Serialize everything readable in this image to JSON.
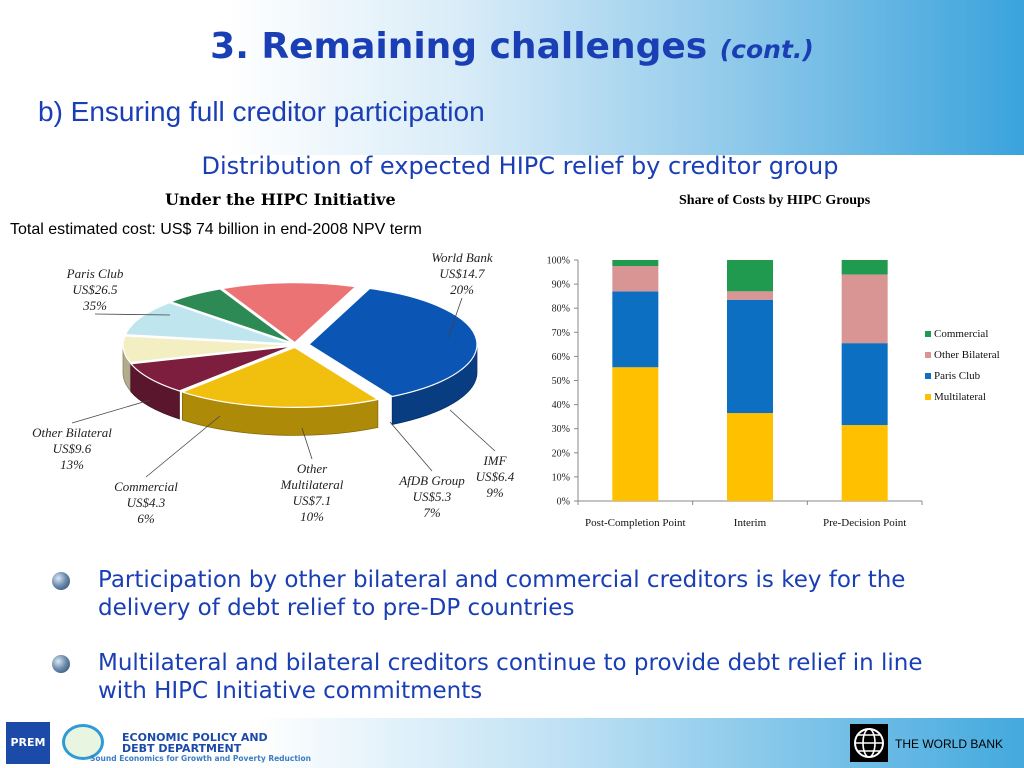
{
  "slide": {
    "title": "3. Remaining challenges",
    "title_suffix": "(cont.)",
    "subtitle": "b) Ensuring full creditor participation",
    "chart_heading": "Distribution of expected HIPC relief by creditor group"
  },
  "chart_data": [
    {
      "type": "pie",
      "title": "Under the HIPC Initiative",
      "note": "Total estimated cost: US$ 74 billion in end-2008 NPV term",
      "slices": [
        {
          "name": "Paris Club",
          "value_label": "US$26.5",
          "percent_label": "35%",
          "value": 26.5,
          "percent": 35,
          "color": "#0b55b5"
        },
        {
          "name": "World Bank",
          "value_label": "US$14.7",
          "percent_label": "20%",
          "value": 14.7,
          "percent": 20,
          "color": "#f1bf0d"
        },
        {
          "name": "IMF",
          "value_label": "US$6.4",
          "percent_label": "9%",
          "value": 6.4,
          "percent": 9,
          "color": "#7d1e3f"
        },
        {
          "name": "AfDB Group",
          "value_label": "US$5.3",
          "percent_label": "7%",
          "value": 5.3,
          "percent": 7,
          "color": "#f4efc3"
        },
        {
          "name": "Other Multilateral",
          "name_line1": "Other",
          "name_line2": "Multilateral",
          "value_label": "US$7.1",
          "percent_label": "10%",
          "value": 7.1,
          "percent": 10,
          "color": "#bfe6ef"
        },
        {
          "name": "Commercial",
          "value_label": "US$4.3",
          "percent_label": "6%",
          "value": 4.3,
          "percent": 6,
          "color": "#2d8a55"
        },
        {
          "name": "Other Bilateral",
          "value_label": "US$9.6",
          "percent_label": "13%",
          "value": 9.6,
          "percent": 13,
          "color": "#ec7373"
        }
      ]
    },
    {
      "type": "bar",
      "stacked": true,
      "percent_stacked": true,
      "title": "Share of Costs by HIPC Groups",
      "categories": [
        "Post-Completion Point",
        "Interim",
        "Pre-Decision Point"
      ],
      "ylim": [
        0,
        100
      ],
      "yticks": [
        "0%",
        "10%",
        "20%",
        "30%",
        "40%",
        "50%",
        "60%",
        "70%",
        "80%",
        "90%",
        "100%"
      ],
      "legend_position": "right",
      "series": [
        {
          "name": "Multilateral",
          "color": "#ffc000",
          "values": [
            55.5,
            36.5,
            31.5
          ]
        },
        {
          "name": "Paris Club",
          "color": "#0c6fc1",
          "values": [
            31.5,
            47,
            34
          ]
        },
        {
          "name": "Other Bilateral",
          "color": "#d99594",
          "values": [
            10.5,
            3.5,
            28.5
          ]
        },
        {
          "name": "Commercial",
          "color": "#1f9a4e",
          "values": [
            2.5,
            13,
            6
          ]
        }
      ]
    }
  ],
  "bullets": [
    "Participation by other bilateral and commercial creditors is key for the delivery of debt relief to pre-DP countries",
    "Multilateral and bilateral creditors continue to provide debt relief in line with HIPC Initiative commitments"
  ],
  "footer": {
    "prem_logo_text": "PREM",
    "department_line1": "ECONOMIC POLICY AND",
    "department_line2": "DEBT DEPARTMENT",
    "tagline": "Sound Economics for Growth and Poverty Reduction",
    "bank_name": "THE WORLD BANK"
  }
}
